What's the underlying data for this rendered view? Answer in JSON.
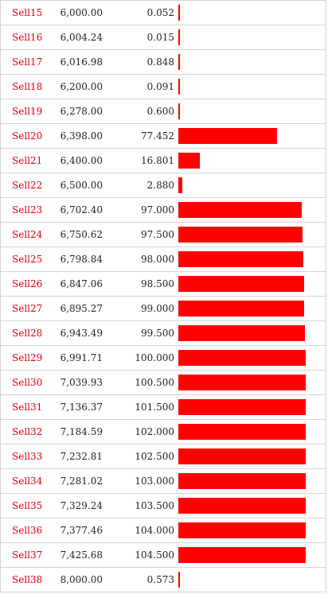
{
  "order_book": {
    "side_color": "#ff0000",
    "bar_scale_max": 100,
    "rows": [
      {
        "label": "Sell15",
        "price": "6,000.00",
        "amount": "0.052",
        "value": 0.052
      },
      {
        "label": "Sell16",
        "price": "6,004.24",
        "amount": "0.015",
        "value": 0.015
      },
      {
        "label": "Sell17",
        "price": "6,016.98",
        "amount": "0.848",
        "value": 0.848
      },
      {
        "label": "Sell18",
        "price": "6,200.00",
        "amount": "0.091",
        "value": 0.091
      },
      {
        "label": "Sell19",
        "price": "6,278.00",
        "amount": "0.600",
        "value": 0.6
      },
      {
        "label": "Sell20",
        "price": "6,398.00",
        "amount": "77.452",
        "value": 77.452
      },
      {
        "label": "Sell21",
        "price": "6,400.00",
        "amount": "16.801",
        "value": 16.801
      },
      {
        "label": "Sell22",
        "price": "6,500.00",
        "amount": "2.880",
        "value": 2.88
      },
      {
        "label": "Sell23",
        "price": "6,702.40",
        "amount": "97.000",
        "value": 97.0
      },
      {
        "label": "Sell24",
        "price": "6,750.62",
        "amount": "97.500",
        "value": 97.5
      },
      {
        "label": "Sell25",
        "price": "6,798.84",
        "amount": "98.000",
        "value": 98.0
      },
      {
        "label": "Sell26",
        "price": "6,847.06",
        "amount": "98.500",
        "value": 98.5
      },
      {
        "label": "Sell27",
        "price": "6,895.27",
        "amount": "99.000",
        "value": 99.0
      },
      {
        "label": "Sell28",
        "price": "6,943.49",
        "amount": "99.500",
        "value": 99.5
      },
      {
        "label": "Sell29",
        "price": "6,991.71",
        "amount": "100.000",
        "value": 100.0
      },
      {
        "label": "Sell30",
        "price": "7,039.93",
        "amount": "100.500",
        "value": 100.5
      },
      {
        "label": "Sell31",
        "price": "7,136.37",
        "amount": "101.500",
        "value": 101.5
      },
      {
        "label": "Sell32",
        "price": "7,184.59",
        "amount": "102.000",
        "value": 102.0
      },
      {
        "label": "Sell33",
        "price": "7,232.81",
        "amount": "102.500",
        "value": 102.5
      },
      {
        "label": "Sell34",
        "price": "7,281.02",
        "amount": "103.000",
        "value": 103.0
      },
      {
        "label": "Sell35",
        "price": "7,329.24",
        "amount": "103.500",
        "value": 103.5
      },
      {
        "label": "Sell36",
        "price": "7,377.46",
        "amount": "104.000",
        "value": 104.0
      },
      {
        "label": "Sell37",
        "price": "7,425.68",
        "amount": "104.500",
        "value": 104.5
      },
      {
        "label": "Sell38",
        "price": "8,000.00",
        "amount": "0.573",
        "value": 0.573
      }
    ]
  }
}
